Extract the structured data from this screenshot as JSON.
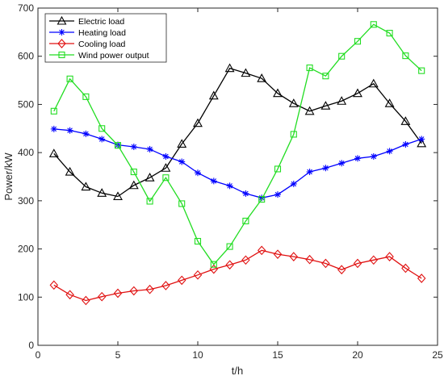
{
  "chart_data": {
    "type": "line",
    "xlabel": "t/h",
    "ylabel": "Power/kW",
    "xlim": [
      0,
      25
    ],
    "ylim": [
      0,
      700
    ],
    "xticks": [
      0,
      5,
      10,
      15,
      20,
      25
    ],
    "yticks": [
      0,
      100,
      200,
      300,
      400,
      500,
      600,
      700
    ],
    "grid": false,
    "legend_position": "top-left",
    "x": [
      1,
      2,
      3,
      4,
      5,
      6,
      7,
      8,
      9,
      10,
      11,
      12,
      13,
      14,
      15,
      16,
      17,
      18,
      19,
      20,
      21,
      22,
      23,
      24
    ],
    "series": [
      {
        "name": "Electric load",
        "color": "#000000",
        "marker": "triangle",
        "values": [
          398,
          360,
          329,
          316,
          309,
          332,
          348,
          368,
          418,
          461,
          518,
          575,
          565,
          554,
          523,
          502,
          486,
          497,
          507,
          523,
          543,
          502,
          465,
          419
        ]
      },
      {
        "name": "Heating load",
        "color": "#0000ff",
        "marker": "star",
        "values": [
          449,
          446,
          439,
          428,
          416,
          412,
          407,
          392,
          381,
          358,
          341,
          331,
          315,
          306,
          313,
          335,
          360,
          368,
          378,
          388,
          392,
          403,
          417,
          428
        ]
      },
      {
        "name": "Cooling load",
        "color": "#e01010",
        "marker": "diamond",
        "values": [
          125,
          105,
          93,
          101,
          108,
          113,
          116,
          124,
          135,
          146,
          158,
          167,
          177,
          197,
          189,
          184,
          178,
          170,
          157,
          170,
          177,
          184,
          160,
          139
        ]
      },
      {
        "name": "Wind power output",
        "color": "#22dd22",
        "marker": "square",
        "values": [
          486,
          553,
          516,
          450,
          415,
          360,
          299,
          348,
          294,
          216,
          168,
          205,
          258,
          303,
          366,
          438,
          576,
          559,
          600,
          631,
          666,
          648,
          601,
          570
        ]
      }
    ]
  }
}
